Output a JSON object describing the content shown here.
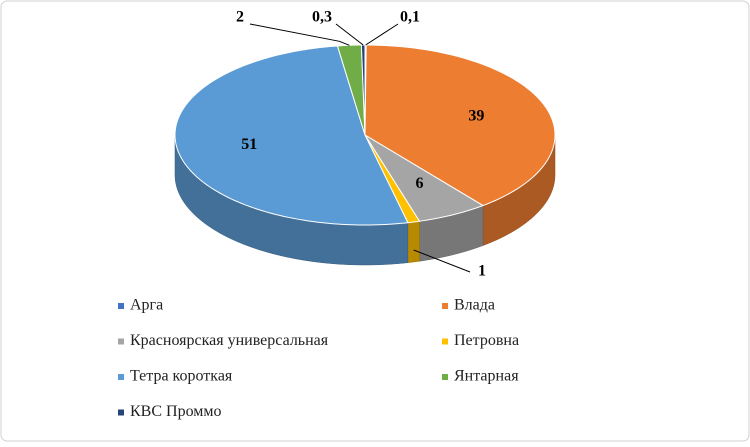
{
  "chart_data": {
    "type": "pie3d",
    "categories": [
      "Арга",
      "Влада",
      "Красноярская универсальная",
      "Петровна",
      "Тетра короткая",
      "Янтарная",
      "КВС Проммо"
    ],
    "values": [
      0.1,
      39,
      6,
      1,
      51,
      2,
      0.3
    ],
    "value_labels": [
      "0,1",
      "39",
      "6",
      "1",
      "51",
      "2",
      "0,3"
    ],
    "colors": [
      "#4472c4",
      "#ed7d31",
      "#a5a5a5",
      "#ffc000",
      "#5b9bd5",
      "#70ad47",
      "#264478"
    ],
    "legend": "bottom"
  }
}
